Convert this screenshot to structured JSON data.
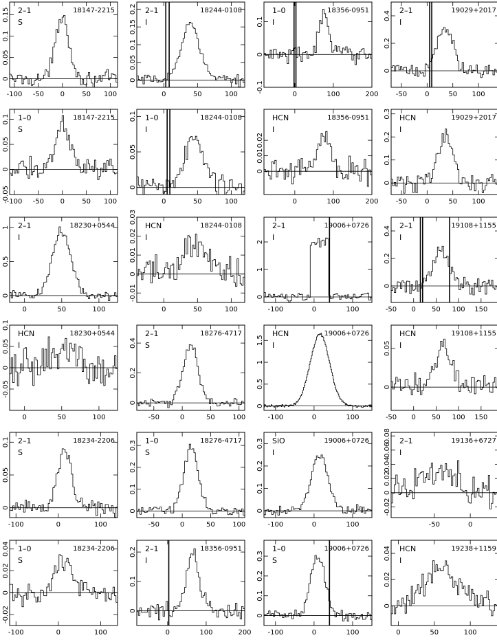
{
  "figure": {
    "rows": 6,
    "cols": 4,
    "description_note": ""
  },
  "chart_data": [
    {
      "type": "line",
      "transition": "2–1",
      "mode": "S",
      "source": "18147-2215",
      "xlim": [
        -110,
        115
      ],
      "ylim": [
        -0.02,
        0.18
      ],
      "xticks": [
        -100,
        -50,
        0,
        50,
        100
      ],
      "yticks": [
        0,
        0.05,
        0.1,
        0.15
      ],
      "profile": {
        "center": 0,
        "width": 22,
        "peak": 0.15,
        "noise": 0.012
      },
      "baseline": 0,
      "vlines": []
    },
    {
      "type": "line",
      "transition": "2–1",
      "mode": "I",
      "source": "18244-0108",
      "xlim": [
        -40,
        120
      ],
      "ylim": [
        -0.02,
        0.22
      ],
      "xticks": [
        0,
        50,
        100
      ],
      "yticks": [
        0,
        0.05,
        0.1,
        0.15,
        0.2
      ],
      "profile": {
        "center": 40,
        "width": 22,
        "peak": 0.16,
        "noise": 0.01
      },
      "baseline": 0,
      "vlines": [
        3,
        8
      ]
    },
    {
      "type": "line",
      "transition": "1–0",
      "mode": "I",
      "source": "18356-0951",
      "xlim": [
        -80,
        200
      ],
      "ylim": [
        -0.1,
        0.16
      ],
      "xticks": [
        0,
        100,
        200
      ],
      "yticks": [
        -0.1,
        0,
        0.1
      ],
      "profile": {
        "center": 75,
        "width": 20,
        "peak": 0.12,
        "noise": 0.02
      },
      "baseline": 0,
      "vlines": [
        -2,
        3
      ]
    },
    {
      "type": "line",
      "transition": "2–1",
      "mode": "I",
      "source": "19029+2017",
      "xlim": [
        -70,
        140
      ],
      "ylim": [
        -0.12,
        0.5
      ],
      "xticks": [
        -50,
        0,
        50,
        100
      ],
      "yticks": [
        0,
        0.2,
        0.4
      ],
      "profile": {
        "center": 35,
        "width": 25,
        "peak": 0.3,
        "noise": 0.04
      },
      "baseline": 0,
      "vlines": [
        5,
        9
      ]
    },
    {
      "type": "line",
      "transition": "1–0",
      "mode": "S",
      "source": "18147-2215",
      "xlim": [
        -110,
        115
      ],
      "ylim": [
        -0.05,
        0.12
      ],
      "xticks": [
        -100,
        -50,
        0,
        50,
        100
      ],
      "yticks": [
        -0.05,
        0,
        0.05,
        0.1
      ],
      "profile": {
        "center": 0,
        "width": 25,
        "peak": 0.09,
        "noise": 0.015
      },
      "baseline": 0,
      "vlines": []
    },
    {
      "type": "line",
      "transition": "1–0",
      "mode": "I",
      "source": "18244-0108",
      "xlim": [
        -40,
        120
      ],
      "ylim": [
        -0.01,
        0.11
      ],
      "xticks": [
        0,
        50,
        100
      ],
      "yticks": [
        0,
        0.05,
        0.1
      ],
      "profile": {
        "center": 45,
        "width": 22,
        "peak": 0.07,
        "noise": 0.012
      },
      "baseline": 0,
      "vlines": [
        5,
        9
      ]
    },
    {
      "type": "line",
      "transition": "HCN",
      "mode": "I",
      "source": "18356-0951",
      "xlim": [
        -80,
        200
      ],
      "ylim": [
        -0.015,
        0.04
      ],
      "xticks": [
        0,
        100,
        200
      ],
      "yticks": [
        0,
        0.01,
        0.02
      ],
      "profile": {
        "center": 75,
        "width": 30,
        "peak": 0.022,
        "noise": 0.006
      },
      "baseline": 0,
      "vlines": []
    },
    {
      "type": "line",
      "transition": "HCN",
      "mode": "I",
      "source": "19029+2017",
      "xlim": [
        -70,
        140
      ],
      "ylim": [
        -0.05,
        0.32
      ],
      "xticks": [
        -50,
        0,
        50,
        100
      ],
      "yticks": [
        0,
        0.1,
        0.2,
        0.3
      ],
      "profile": {
        "center": 35,
        "width": 25,
        "peak": 0.2,
        "noise": 0.03
      },
      "baseline": 0,
      "vlines": []
    },
    {
      "type": "line",
      "transition": "2–1",
      "mode": "I",
      "source": "18230+0544",
      "xlim": [
        -20,
        125
      ],
      "ylim": [
        -0.1,
        1.15
      ],
      "xticks": [
        0,
        50,
        100
      ],
      "yticks": [
        0,
        0.5,
        1
      ],
      "profile": {
        "center": 50,
        "width": 20,
        "peak": 0.95,
        "noise": 0.05
      },
      "baseline": 0,
      "vlines": []
    },
    {
      "type": "line",
      "transition": "HCN",
      "mode": "I",
      "source": "18244-0108",
      "xlim": [
        -40,
        120
      ],
      "ylim": [
        -0.015,
        0.03
      ],
      "xticks": [
        0,
        50,
        100
      ],
      "yticks": [
        -0.01,
        0,
        0.01,
        0.02,
        0.03
      ],
      "profile": {
        "center": 45,
        "width": 30,
        "peak": 0.015,
        "noise": 0.007
      },
      "baseline": 0,
      "vlines": []
    },
    {
      "type": "line",
      "transition": "2–1",
      "mode": "I",
      "source": "19006+0726",
      "xlim": [
        -130,
        150
      ],
      "ylim": [
        -0.2,
        2.9
      ],
      "xticks": [
        -100,
        0,
        100
      ],
      "yticks": [
        0,
        1,
        2
      ],
      "profile": {
        "center": 15,
        "width": 45,
        "peak": 2.1,
        "noise": 0.1,
        "flat": true
      },
      "baseline": 0,
      "vlines": [
        40
      ]
    },
    {
      "type": "line",
      "transition": "2–1",
      "mode": "I",
      "source": "19108+1155",
      "xlim": [
        -50,
        190
      ],
      "ylim": [
        -0.12,
        0.5
      ],
      "xticks": [
        -50,
        0,
        50,
        100,
        150
      ],
      "yticks": [
        0,
        0.2,
        0.4
      ],
      "profile": {
        "center": 60,
        "width": 30,
        "peak": 0.25,
        "noise": 0.04
      },
      "baseline": 0,
      "vlines": [
        15,
        20,
        80
      ]
    },
    {
      "type": "line",
      "transition": "HCN",
      "mode": "I",
      "source": "18230+0544",
      "xlim": [
        -20,
        125
      ],
      "ylim": [
        -0.1,
        0.1
      ],
      "xticks": [
        0,
        50,
        100
      ],
      "yticks": [
        -0.05,
        0,
        0.05,
        0.1
      ],
      "profile": {
        "center": 55,
        "width": 30,
        "peak": 0.05,
        "noise": 0.03
      },
      "baseline": 0,
      "vlines": []
    },
    {
      "type": "line",
      "transition": "2–1",
      "mode": "S",
      "source": "18276-4717",
      "xlim": [
        -80,
        110
      ],
      "ylim": [
        -0.05,
        0.52
      ],
      "xticks": [
        -50,
        0,
        50,
        100
      ],
      "yticks": [
        0,
        0.2,
        0.4
      ],
      "profile": {
        "center": 15,
        "width": 20,
        "peak": 0.4,
        "noise": 0.02
      },
      "baseline": 0,
      "vlines": []
    },
    {
      "type": "line",
      "transition": "HCN",
      "mode": "I",
      "source": "19006+0726",
      "xlim": [
        -130,
        150
      ],
      "ylim": [
        -0.1,
        1.85
      ],
      "xticks": [
        -100,
        0,
        100
      ],
      "yticks": [
        0,
        0.5,
        1,
        1.5
      ],
      "profile": {
        "center": 15,
        "width": 40,
        "peak": 1.65,
        "noise": 0.02,
        "smooth": true
      },
      "baseline": 0,
      "vlines": []
    },
    {
      "type": "line",
      "transition": "HCN",
      "mode": "I",
      "source": "19108+1155",
      "xlim": [
        -50,
        190
      ],
      "ylim": [
        -0.03,
        0.08
      ],
      "xticks": [
        -50,
        0,
        50,
        100,
        150
      ],
      "yticks": [
        0,
        0.05
      ],
      "profile": {
        "center": 65,
        "width": 30,
        "peak": 0.05,
        "noise": 0.012
      },
      "baseline": 0,
      "vlines": []
    },
    {
      "type": "line",
      "transition": "2–1",
      "mode": "S",
      "source": "18234-2206",
      "xlim": [
        -115,
        140
      ],
      "ylim": [
        -0.015,
        0.115
      ],
      "xticks": [
        -100,
        0,
        100
      ],
      "yticks": [
        0,
        0.05,
        0.1
      ],
      "profile": {
        "center": 15,
        "width": 25,
        "peak": 0.09,
        "noise": 0.008
      },
      "baseline": 0,
      "vlines": []
    },
    {
      "type": "line",
      "transition": "1–0",
      "mode": "S",
      "source": "18276-4717",
      "xlim": [
        -80,
        110
      ],
      "ylim": [
        -0.03,
        0.36
      ],
      "xticks": [
        -50,
        0,
        50,
        100
      ],
      "yticks": [
        0,
        0.1,
        0.2,
        0.3
      ],
      "profile": {
        "center": 15,
        "width": 20,
        "peak": 0.29,
        "noise": 0.015
      },
      "baseline": 0,
      "vlines": []
    },
    {
      "type": "line",
      "transition": "SiO",
      "mode": "I",
      "source": "19006+0726",
      "xlim": [
        -130,
        150
      ],
      "ylim": [
        -0.03,
        0.35
      ],
      "xticks": [
        -100,
        0,
        100
      ],
      "yticks": [
        0,
        0.1,
        0.2,
        0.3
      ],
      "profile": {
        "center": 15,
        "width": 35,
        "peak": 0.25,
        "noise": 0.015
      },
      "baseline": 0,
      "vlines": []
    },
    {
      "type": "line",
      "transition": "2–1",
      "mode": "I",
      "source": "19136+6727",
      "xlim": [
        -110,
        40
      ],
      "ylim": [
        -0.035,
        0.085
      ],
      "xticks": [
        -50,
        0
      ],
      "yticks": [
        -0.02,
        0,
        0.02,
        0.04,
        0.06,
        0.08
      ],
      "profile": {
        "center": -45,
        "width": 40,
        "peak": 0.035,
        "noise": 0.02
      },
      "baseline": 0,
      "vlines": []
    },
    {
      "type": "line",
      "transition": "1–0",
      "mode": "S",
      "source": "18234-2206",
      "xlim": [
        -115,
        140
      ],
      "ylim": [
        -0.03,
        0.048
      ],
      "xticks": [
        -100,
        0,
        100
      ],
      "yticks": [
        -0.02,
        0,
        0.02,
        0.04
      ],
      "profile": {
        "center": 15,
        "width": 35,
        "peak": 0.03,
        "noise": 0.008
      },
      "baseline": 0,
      "vlines": []
    },
    {
      "type": "line",
      "transition": "2–1",
      "mode": "I",
      "source": "18356-0951",
      "xlim": [
        -80,
        200
      ],
      "ylim": [
        -0.05,
        0.24
      ],
      "xticks": [
        0,
        100,
        200
      ],
      "yticks": [
        0,
        0.1,
        0.2
      ],
      "profile": {
        "center": 65,
        "width": 25,
        "peak": 0.2,
        "noise": 0.02
      },
      "baseline": 0,
      "vlines": [
        3
      ]
    },
    {
      "type": "line",
      "transition": "1–0",
      "mode": "S",
      "source": "19006+0726",
      "xlim": [
        -130,
        150
      ],
      "ylim": [
        -0.05,
        0.38
      ],
      "xticks": [
        -100,
        0,
        100
      ],
      "yticks": [
        0,
        0.1,
        0.2,
        0.3
      ],
      "profile": {
        "center": 10,
        "width": 30,
        "peak": 0.3,
        "noise": 0.02
      },
      "baseline": 0,
      "vlines": [
        40
      ]
    },
    {
      "type": "line",
      "transition": "HCN",
      "mode": "I",
      "source": "19238+1159",
      "xlim": [
        -10,
        140
      ],
      "ylim": [
        -0.015,
        0.05
      ],
      "xticks": [
        0,
        50,
        100
      ],
      "yticks": [
        0,
        0.02,
        0.04
      ],
      "profile": {
        "center": 60,
        "width": 35,
        "peak": 0.03,
        "noise": 0.008
      },
      "baseline": 0,
      "vlines": []
    }
  ]
}
